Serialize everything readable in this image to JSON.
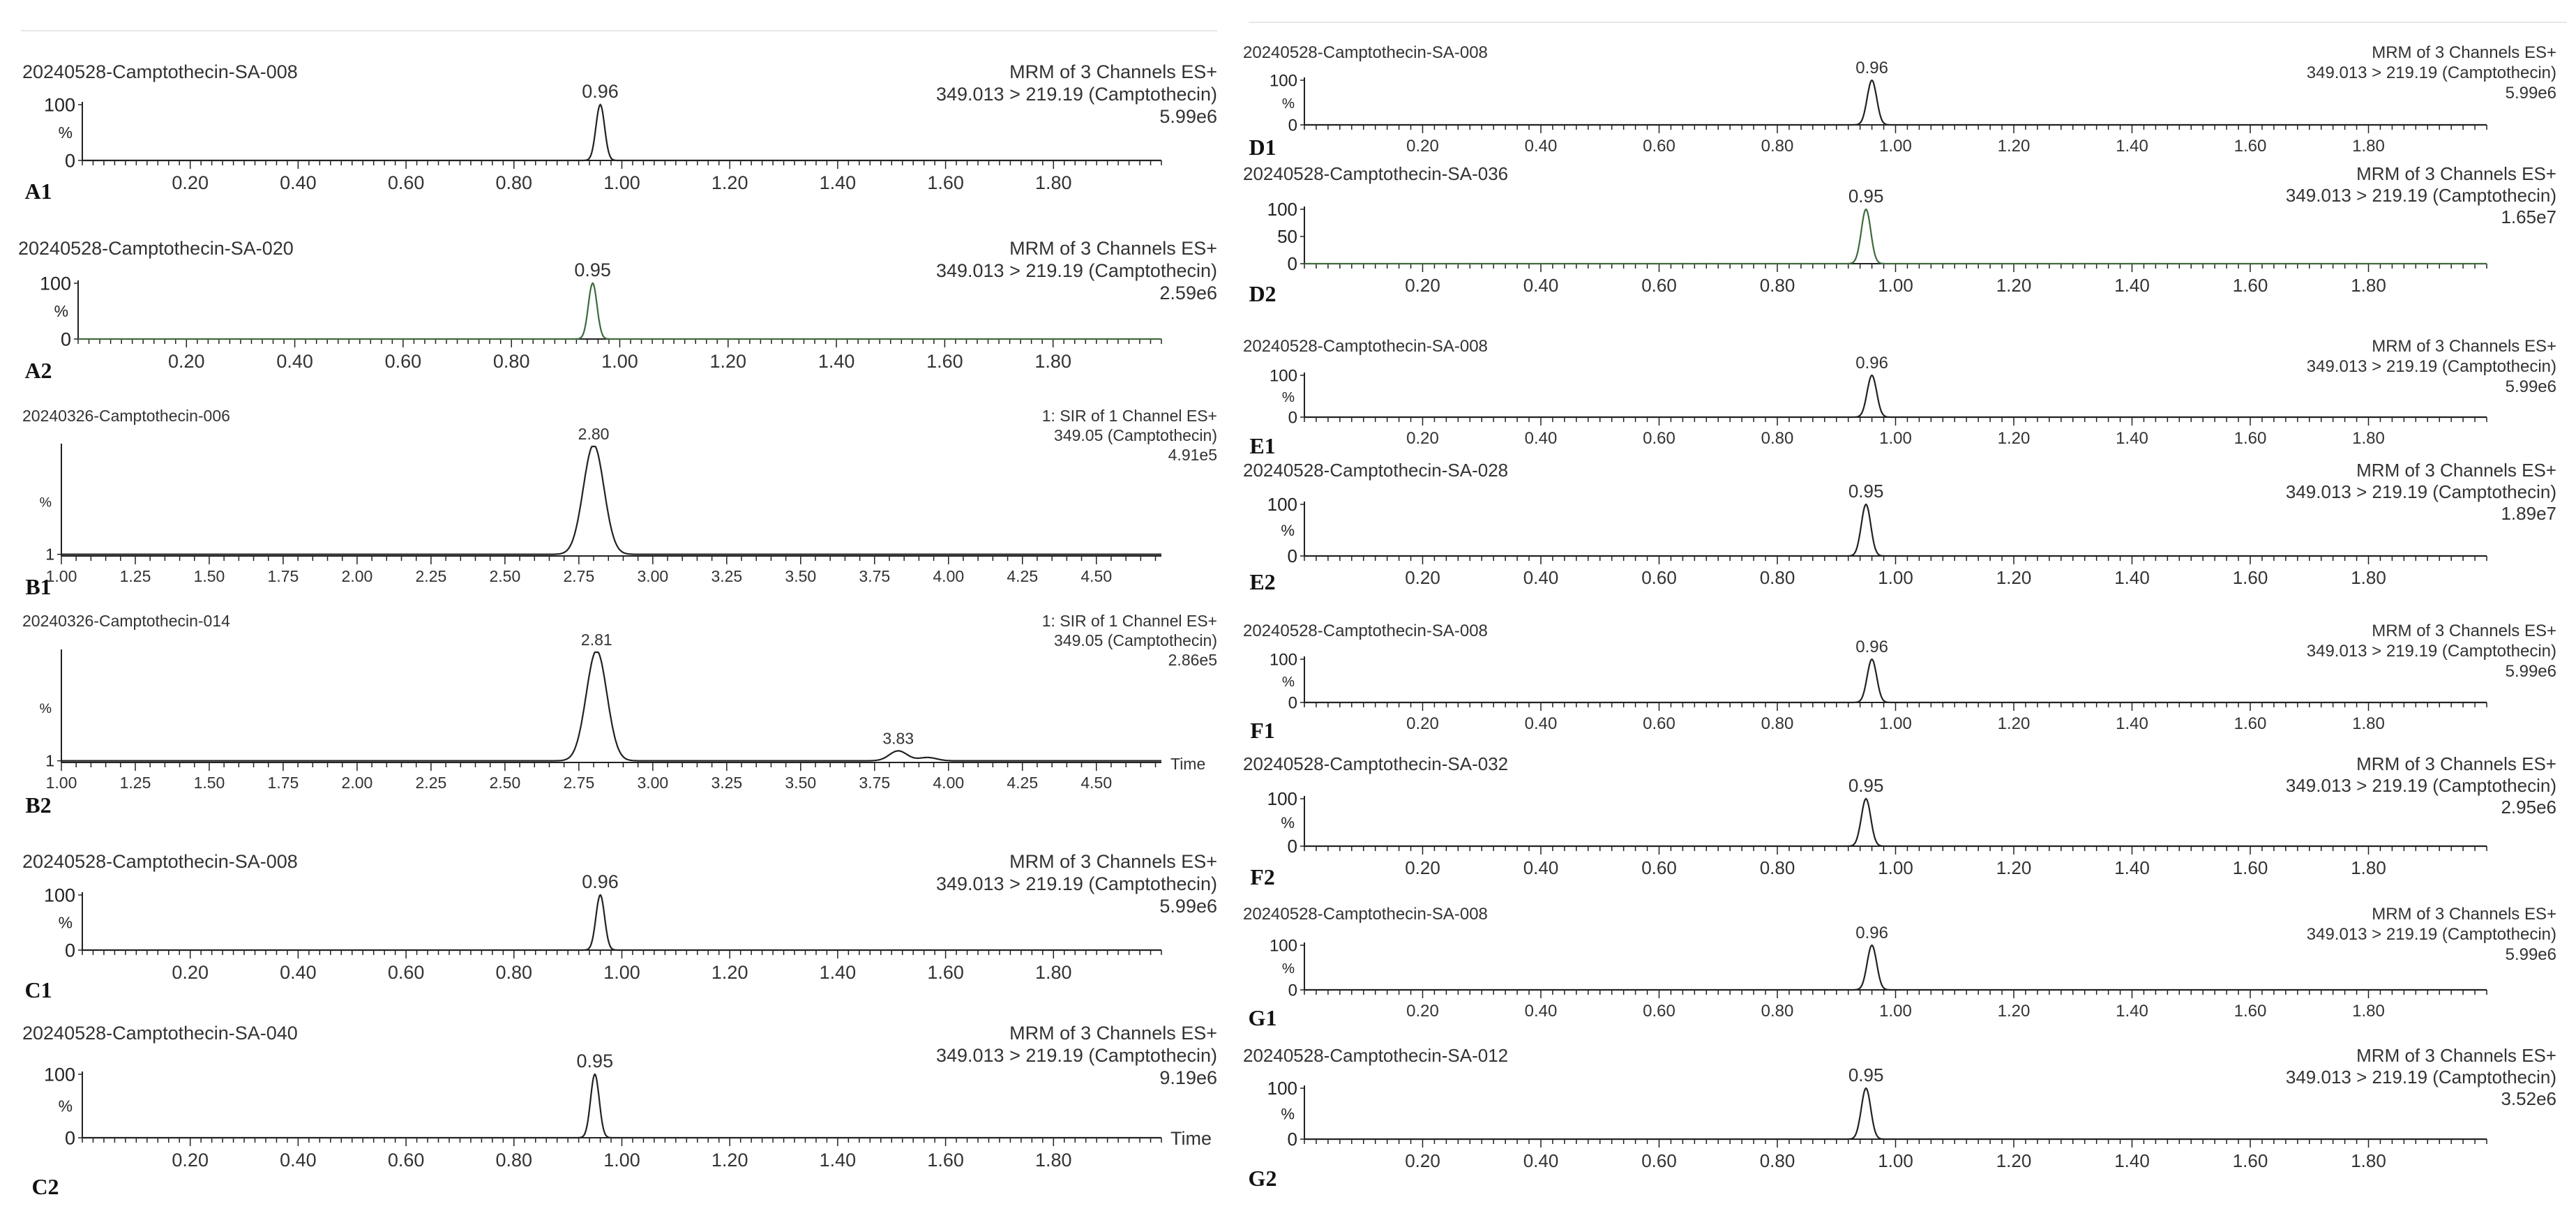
{
  "figure": {
    "background": "#ffffff",
    "trace_color": "#222222",
    "green_color": "#3d6b3d"
  },
  "chart_data": [
    {
      "id": "A1",
      "type": "line",
      "panel_label": "A1",
      "sample": "20240528-Camptothecin-SA-008",
      "header": [
        "MRM of 3 Channels ES+",
        "349.013 > 219.19 (Camptothecin)",
        "5.99e6"
      ],
      "header_color": "#333333",
      "xlim": [
        0.0,
        2.0
      ],
      "x_ticks": [
        0.2,
        0.4,
        0.6,
        0.8,
        1.0,
        1.2,
        1.4,
        1.6,
        1.8
      ],
      "x_tick_labels": [
        "0.20",
        "0.40",
        "0.60",
        "0.80",
        "1.00",
        "1.20",
        "1.40",
        "1.60",
        "1.80"
      ],
      "y_ticks": [
        "100",
        "0"
      ],
      "y_unit": "%",
      "ylim": [
        0,
        100
      ],
      "peaks": [
        {
          "rt": 0.96,
          "label": "0.96",
          "height": 100,
          "width": 0.008
        }
      ],
      "baseline": 0,
      "time_label": ""
    },
    {
      "id": "A2",
      "type": "line",
      "panel_label": "A2",
      "sample": "20240528-Camptothecin-SA-020",
      "header": [
        "MRM of 3 Channels ES+",
        "349.013 > 219.19 (Camptothecin)",
        "2.59e6"
      ],
      "header_color": "#3d6b3d",
      "xlim": [
        0.0,
        2.0
      ],
      "x_ticks": [
        0.2,
        0.4,
        0.6,
        0.8,
        1.0,
        1.2,
        1.4,
        1.6,
        1.8
      ],
      "x_tick_labels": [
        "0.20",
        "0.40",
        "0.60",
        "0.80",
        "1.00",
        "1.20",
        "1.40",
        "1.60",
        "1.80"
      ],
      "y_ticks": [
        "100",
        "0"
      ],
      "y_unit": "%",
      "ylim": [
        0,
        100
      ],
      "peaks": [
        {
          "rt": 0.95,
          "label": "0.95",
          "height": 100,
          "width": 0.008
        }
      ],
      "baseline": 0,
      "time_label": ""
    },
    {
      "id": "B1",
      "type": "line",
      "panel_label": "B1",
      "sample": "20240326-Camptothecin-006",
      "header": [
        "1: SIR of 1 Channel ES+",
        "349.05 (Camptothecin)",
        "4.91e5"
      ],
      "header_color": "#333333",
      "xlim": [
        1.0,
        4.72
      ],
      "x_ticks": [
        1.0,
        1.25,
        1.5,
        1.75,
        2.0,
        2.25,
        2.5,
        2.75,
        3.0,
        3.25,
        3.5,
        3.75,
        4.0,
        4.25,
        4.5
      ],
      "x_tick_labels": [
        "1.00",
        "1.25",
        "1.50",
        "1.75",
        "2.00",
        "2.25",
        "2.50",
        "2.75",
        "3.00",
        "3.25",
        "3.50",
        "3.75",
        "4.00",
        "4.25",
        "4.50"
      ],
      "y_ticks": [
        "1"
      ],
      "y_unit": "%",
      "ylim": [
        0,
        100
      ],
      "peaks": [
        {
          "rt": 2.8,
          "label": "2.80",
          "height": 100,
          "width": 0.035
        }
      ],
      "baseline": 1.5,
      "time_label": ""
    },
    {
      "id": "B2",
      "type": "line",
      "panel_label": "B2",
      "sample": "20240326-Camptothecin-014",
      "header": [
        "1: SIR of 1 Channel ES+",
        "349.05 (Camptothecin)",
        "2.86e5"
      ],
      "header_color": "#333333",
      "xlim": [
        1.0,
        4.72
      ],
      "x_ticks": [
        1.0,
        1.25,
        1.5,
        1.75,
        2.0,
        2.25,
        2.5,
        2.75,
        3.0,
        3.25,
        3.5,
        3.75,
        4.0,
        4.25,
        4.5
      ],
      "x_tick_labels": [
        "1.00",
        "1.25",
        "1.50",
        "1.75",
        "2.00",
        "2.25",
        "2.50",
        "2.75",
        "3.00",
        "3.25",
        "3.50",
        "3.75",
        "4.00",
        "4.25",
        "4.50"
      ],
      "y_ticks": [
        "1"
      ],
      "y_unit": "%",
      "ylim": [
        0,
        100
      ],
      "peaks": [
        {
          "rt": 2.81,
          "label": "2.81",
          "height": 100,
          "width": 0.035
        },
        {
          "rt": 3.83,
          "label": "3.83",
          "height": 9,
          "width": 0.03
        },
        {
          "rt": 3.93,
          "label": "",
          "height": 3,
          "width": 0.03
        }
      ],
      "baseline": 1.5,
      "time_label": "Time"
    },
    {
      "id": "C1",
      "type": "line",
      "panel_label": "C1",
      "sample": "20240528-Camptothecin-SA-008",
      "header": [
        "MRM of 3 Channels ES+",
        "349.013 > 219.19 (Camptothecin)",
        "5.99e6"
      ],
      "header_color": "#333333",
      "xlim": [
        0.0,
        2.0
      ],
      "x_ticks": [
        0.2,
        0.4,
        0.6,
        0.8,
        1.0,
        1.2,
        1.4,
        1.6,
        1.8
      ],
      "x_tick_labels": [
        "0.20",
        "0.40",
        "0.60",
        "0.80",
        "1.00",
        "1.20",
        "1.40",
        "1.60",
        "1.80"
      ],
      "y_ticks": [
        "100",
        "0"
      ],
      "y_unit": "%",
      "ylim": [
        0,
        100
      ],
      "peaks": [
        {
          "rt": 0.96,
          "label": "0.96",
          "height": 100,
          "width": 0.008
        }
      ],
      "baseline": 0,
      "time_label": ""
    },
    {
      "id": "C2",
      "type": "line",
      "panel_label": "C2",
      "sample": "20240528-Camptothecin-SA-040",
      "header": [
        "MRM of 3 Channels ES+",
        "349.013 > 219.19 (Camptothecin)",
        "9.19e6"
      ],
      "header_color": "#333333",
      "xlim": [
        0.0,
        2.0
      ],
      "x_ticks": [
        0.2,
        0.4,
        0.6,
        0.8,
        1.0,
        1.2,
        1.4,
        1.6,
        1.8
      ],
      "x_tick_labels": [
        "0.20",
        "0.40",
        "0.60",
        "0.80",
        "1.00",
        "1.20",
        "1.40",
        "1.60",
        "1.80"
      ],
      "y_ticks": [
        "100",
        "0"
      ],
      "y_unit": "%",
      "ylim": [
        0,
        100
      ],
      "peaks": [
        {
          "rt": 0.95,
          "label": "0.95",
          "height": 100,
          "width": 0.008
        }
      ],
      "baseline": 0,
      "time_label": "Time"
    },
    {
      "id": "D1",
      "type": "line",
      "panel_label": "D1",
      "sample": "20240528-Camptothecin-SA-008",
      "header": [
        "MRM of 3 Channels ES+",
        "349.013 > 219.19 (Camptothecin)",
        "5.99e6"
      ],
      "header_color": "#333333",
      "xlim": [
        0.0,
        2.0
      ],
      "x_ticks": [
        0.2,
        0.4,
        0.6,
        0.8,
        1.0,
        1.2,
        1.4,
        1.6,
        1.8
      ],
      "x_tick_labels": [
        "0.20",
        "0.40",
        "0.60",
        "0.80",
        "1.00",
        "1.20",
        "1.40",
        "1.60",
        "1.80"
      ],
      "y_ticks": [
        "100",
        "0"
      ],
      "y_unit": "%",
      "ylim": [
        0,
        100
      ],
      "peaks": [
        {
          "rt": 0.96,
          "label": "0.96",
          "height": 100,
          "width": 0.008
        }
      ],
      "baseline": 0,
      "time_label": ""
    },
    {
      "id": "D2",
      "type": "line",
      "panel_label": "D2",
      "sample": "20240528-Camptothecin-SA-036",
      "header": [
        "MRM of 3 Channels ES+",
        "349.013 > 219.19 (Camptothecin)",
        "1.65e7"
      ],
      "header_color": "#3d6b3d",
      "xlim": [
        0.0,
        2.0
      ],
      "x_ticks": [
        0.2,
        0.4,
        0.6,
        0.8,
        1.0,
        1.2,
        1.4,
        1.6,
        1.8
      ],
      "x_tick_labels": [
        "0.20",
        "0.40",
        "0.60",
        "0.80",
        "1.00",
        "1.20",
        "1.40",
        "1.60",
        "1.80"
      ],
      "y_ticks": [
        "100",
        "50",
        "0"
      ],
      "y_unit": "",
      "ylim": [
        0,
        100
      ],
      "peaks": [
        {
          "rt": 0.95,
          "label": "0.95",
          "height": 100,
          "width": 0.008
        }
      ],
      "baseline": 0,
      "time_label": ""
    },
    {
      "id": "E1",
      "type": "line",
      "panel_label": "E1",
      "sample": "20240528-Camptothecin-SA-008",
      "header": [
        "MRM of 3 Channels ES+",
        "349.013 > 219.19 (Camptothecin)",
        "5.99e6"
      ],
      "header_color": "#333333",
      "xlim": [
        0.0,
        2.0
      ],
      "x_ticks": [
        0.2,
        0.4,
        0.6,
        0.8,
        1.0,
        1.2,
        1.4,
        1.6,
        1.8
      ],
      "x_tick_labels": [
        "0.20",
        "0.40",
        "0.60",
        "0.80",
        "1.00",
        "1.20",
        "1.40",
        "1.60",
        "1.80"
      ],
      "y_ticks": [
        "100",
        "0"
      ],
      "y_unit": "%",
      "ylim": [
        0,
        100
      ],
      "peaks": [
        {
          "rt": 0.96,
          "label": "0.96",
          "height": 100,
          "width": 0.008
        }
      ],
      "baseline": 0,
      "time_label": ""
    },
    {
      "id": "E2",
      "type": "line",
      "panel_label": "E2",
      "sample": "20240528-Camptothecin-SA-028",
      "header": [
        "MRM of 3 Channels ES+",
        "349.013 > 219.19 (Camptothecin)",
        "1.89e7"
      ],
      "header_color": "#333333",
      "xlim": [
        0.0,
        2.0
      ],
      "x_ticks": [
        0.2,
        0.4,
        0.6,
        0.8,
        1.0,
        1.2,
        1.4,
        1.6,
        1.8
      ],
      "x_tick_labels": [
        "0.20",
        "0.40",
        "0.60",
        "0.80",
        "1.00",
        "1.20",
        "1.40",
        "1.60",
        "1.80"
      ],
      "y_ticks": [
        "100",
        "0"
      ],
      "y_unit": "%",
      "ylim": [
        0,
        100
      ],
      "peaks": [
        {
          "rt": 0.95,
          "label": "0.95",
          "height": 100,
          "width": 0.008
        }
      ],
      "baseline": 0,
      "time_label": ""
    },
    {
      "id": "F1",
      "type": "line",
      "panel_label": "F1",
      "sample": "20240528-Camptothecin-SA-008",
      "header": [
        "MRM of 3 Channels ES+",
        "349.013 > 219.19 (Camptothecin)",
        "5.99e6"
      ],
      "header_color": "#333333",
      "xlim": [
        0.0,
        2.0
      ],
      "x_ticks": [
        0.2,
        0.4,
        0.6,
        0.8,
        1.0,
        1.2,
        1.4,
        1.6,
        1.8
      ],
      "x_tick_labels": [
        "0.20",
        "0.40",
        "0.60",
        "0.80",
        "1.00",
        "1.20",
        "1.40",
        "1.60",
        "1.80"
      ],
      "y_ticks": [
        "100",
        "0"
      ],
      "y_unit": "%",
      "ylim": [
        0,
        100
      ],
      "peaks": [
        {
          "rt": 0.96,
          "label": "0.96",
          "height": 100,
          "width": 0.008
        }
      ],
      "baseline": 0,
      "time_label": ""
    },
    {
      "id": "F2",
      "type": "line",
      "panel_label": "F2",
      "sample": "20240528-Camptothecin-SA-032",
      "header": [
        "MRM of 3 Channels ES+",
        "349.013 > 219.19 (Camptothecin)",
        "2.95e6"
      ],
      "header_color": "#333333",
      "xlim": [
        0.0,
        2.0
      ],
      "x_ticks": [
        0.2,
        0.4,
        0.6,
        0.8,
        1.0,
        1.2,
        1.4,
        1.6,
        1.8
      ],
      "x_tick_labels": [
        "0.20",
        "0.40",
        "0.60",
        "0.80",
        "1.00",
        "1.20",
        "1.40",
        "1.60",
        "1.80"
      ],
      "y_ticks": [
        "100",
        "0"
      ],
      "y_unit": "%",
      "ylim": [
        0,
        100
      ],
      "peaks": [
        {
          "rt": 0.95,
          "label": "0.95",
          "height": 100,
          "width": 0.008
        }
      ],
      "baseline": 0,
      "time_label": ""
    },
    {
      "id": "G1",
      "type": "line",
      "panel_label": "G1",
      "sample": "20240528-Camptothecin-SA-008",
      "header": [
        "MRM of 3 Channels ES+",
        "349.013 > 219.19 (Camptothecin)",
        "5.99e6"
      ],
      "header_color": "#333333",
      "xlim": [
        0.0,
        2.0
      ],
      "x_ticks": [
        0.2,
        0.4,
        0.6,
        0.8,
        1.0,
        1.2,
        1.4,
        1.6,
        1.8
      ],
      "x_tick_labels": [
        "0.20",
        "0.40",
        "0.60",
        "0.80",
        "1.00",
        "1.20",
        "1.40",
        "1.60",
        "1.80"
      ],
      "y_ticks": [
        "100",
        "0"
      ],
      "y_unit": "%",
      "ylim": [
        0,
        100
      ],
      "peaks": [
        {
          "rt": 0.96,
          "label": "0.96",
          "height": 100,
          "width": 0.008
        }
      ],
      "baseline": 0,
      "time_label": ""
    },
    {
      "id": "G2",
      "type": "line",
      "panel_label": "G2",
      "sample": "20240528-Camptothecin-SA-012",
      "header": [
        "MRM of 3 Channels ES+",
        "349.013 > 219.19 (Camptothecin)",
        "3.52e6"
      ],
      "header_color": "#333333",
      "xlim": [
        0.0,
        2.0
      ],
      "x_ticks": [
        0.2,
        0.4,
        0.6,
        0.8,
        1.0,
        1.2,
        1.4,
        1.6,
        1.8
      ],
      "x_tick_labels": [
        "0.20",
        "0.40",
        "0.60",
        "0.80",
        "1.00",
        "1.20",
        "1.40",
        "1.60",
        "1.80"
      ],
      "y_ticks": [
        "100",
        "0"
      ],
      "y_unit": "%",
      "ylim": [
        0,
        100
      ],
      "peaks": [
        {
          "rt": 0.95,
          "label": "0.95",
          "height": 100,
          "width": 0.008
        }
      ],
      "baseline": 0,
      "time_label": ""
    }
  ]
}
